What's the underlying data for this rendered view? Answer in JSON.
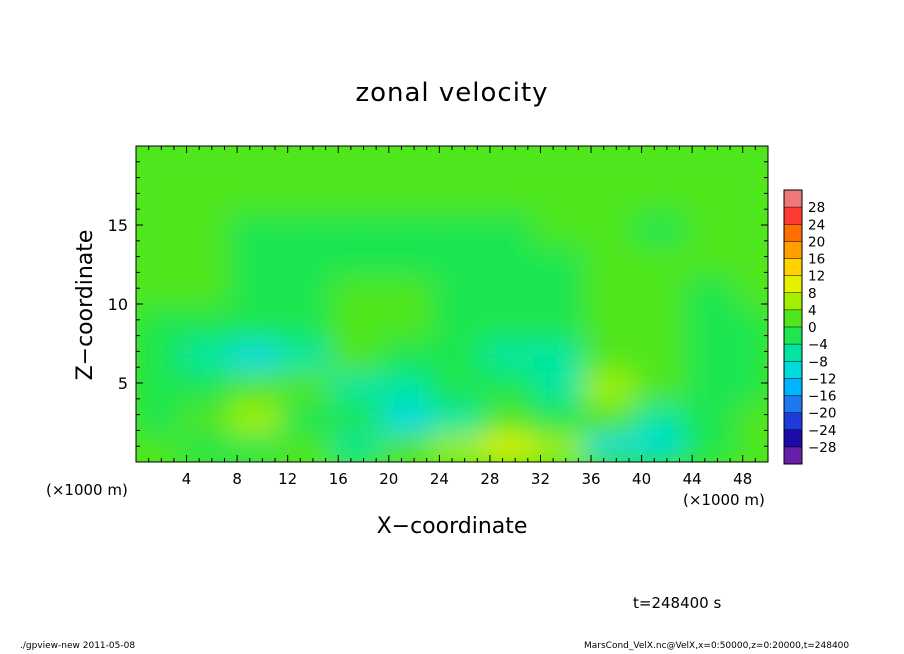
{
  "chart_data": {
    "type": "heatmap",
    "title": "zonal velocity",
    "xlabel": "X−coordinate",
    "ylabel": "Z−coordinate",
    "x_unit_left": "(×1000 m)",
    "x_unit_right": "(×1000 m)",
    "xlim": [
      0,
      50
    ],
    "ylim": [
      0,
      20
    ],
    "xticks": [
      4,
      8,
      12,
      16,
      20,
      24,
      28,
      32,
      36,
      40,
      44,
      48
    ],
    "xtick_labels": [
      "4",
      "8",
      "12",
      "16",
      "20",
      "24",
      "28",
      "32",
      "36",
      "40",
      "44",
      "48"
    ],
    "yticks": [
      5,
      10,
      15
    ],
    "ytick_labels": [
      "5",
      "10",
      "15"
    ],
    "grid": false,
    "colorbar": {
      "levels": [
        -32,
        -28,
        -24,
        -20,
        -16,
        -12,
        -8,
        -4,
        0,
        4,
        8,
        12,
        16,
        20,
        24,
        28,
        32
      ],
      "labels": [
        "28",
        "24",
        "20",
        "16",
        "12",
        "8",
        "4",
        "0",
        "−4",
        "−8",
        "−12",
        "−16",
        "−20",
        "−24",
        "−28"
      ],
      "colors": [
        "#6a1fa8",
        "#1e0aa8",
        "#1e3cdc",
        "#1e78f0",
        "#00b4ff",
        "#00dcdc",
        "#00e6a0",
        "#1ee650",
        "#50e61e",
        "#a0f000",
        "#e6f000",
        "#ffd200",
        "#ffa000",
        "#ff6e00",
        "#ff3c32",
        "#f07878"
      ]
    },
    "field_description_cells": {
      "x_centers_km": [
        2,
        6,
        10,
        14,
        18,
        22,
        26,
        30,
        34,
        38,
        42,
        46,
        50
      ],
      "z_centers_km": [
        1,
        3,
        5,
        7,
        9,
        11,
        13,
        15,
        17,
        19
      ],
      "zonal_velocity": [
        [
          1,
          -1,
          -2,
          3,
          -7,
          1,
          4,
          9,
          4,
          -10,
          -10,
          -4,
          0
        ],
        [
          -3,
          1,
          4,
          -1,
          -2,
          -10,
          -5,
          0,
          -2,
          3,
          -6,
          -3,
          3
        ],
        [
          -4,
          -2,
          1,
          2,
          -5,
          -8,
          -3,
          -3,
          -6,
          4,
          0,
          -2,
          -4
        ],
        [
          -2,
          -6,
          -9,
          -5,
          1,
          -1,
          -3,
          -6,
          -7,
          3,
          1,
          -1,
          -2
        ],
        [
          -1,
          -4,
          -3,
          -1,
          1,
          1,
          -1,
          -4,
          -2,
          2,
          0,
          -1,
          -2
        ],
        [
          0,
          0,
          -1,
          -1,
          0,
          0,
          -2,
          -3,
          -1,
          0,
          0,
          -1,
          0
        ],
        [
          3,
          1,
          -1,
          -1,
          -1,
          -2,
          -2,
          -2,
          -1,
          0,
          2,
          2,
          3
        ],
        [
          3,
          0,
          -2,
          -1,
          -1,
          -1,
          -1,
          -1,
          0,
          0,
          -1,
          1,
          2
        ],
        [
          1,
          0,
          0,
          1,
          1,
          1,
          1,
          1,
          1,
          0,
          0,
          0,
          1
        ],
        [
          0,
          0,
          0,
          0,
          0,
          0,
          0,
          0,
          0,
          0,
          0,
          0,
          0
        ]
      ]
    }
  },
  "labels": {
    "timestamp": "t=248400 s",
    "footer_left": "./gpview-new  2011-05-08",
    "footer_right": "MarsCond_VelX.nc@VelX,x=0:50000,z=0:20000,t=248400"
  }
}
